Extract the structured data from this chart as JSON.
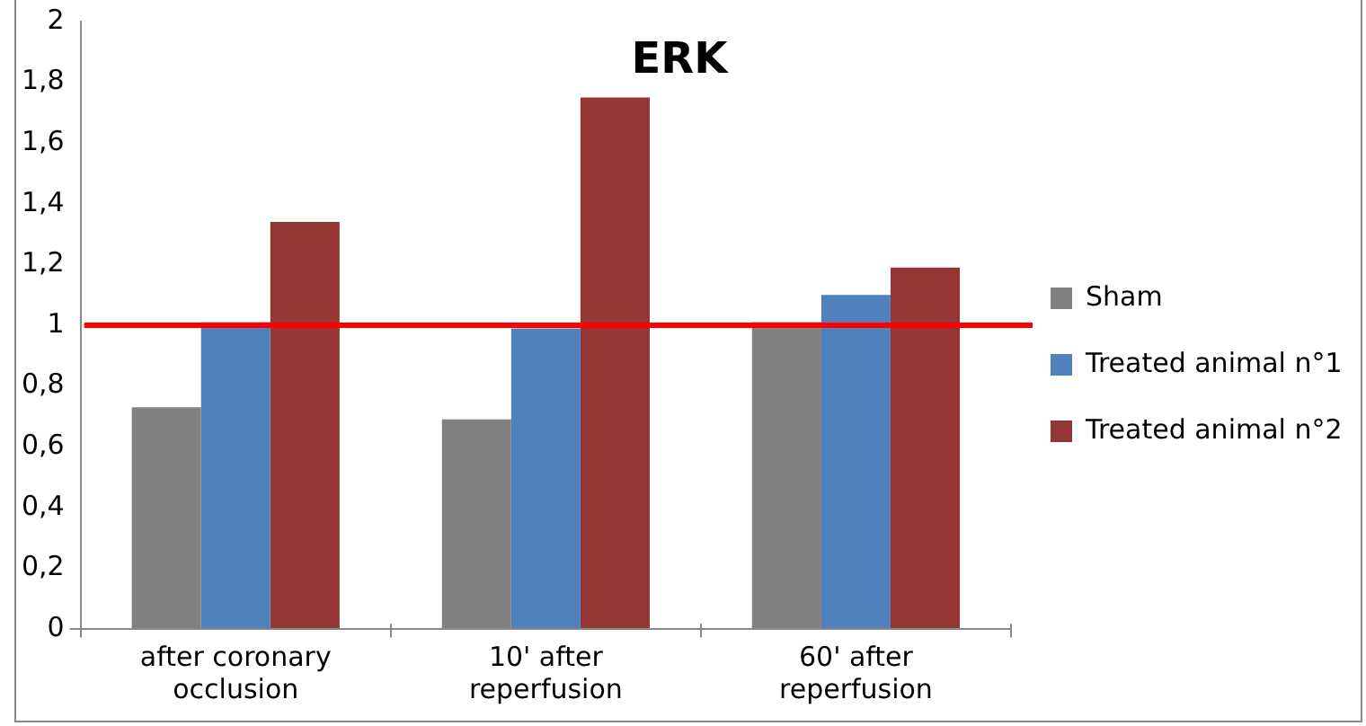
{
  "chart_data": {
    "type": "bar",
    "title": "ERK",
    "categories": [
      "after coronary occlusion",
      "10' after reperfusion",
      "60' after reperfusion"
    ],
    "series": [
      {
        "name": "Sham",
        "color": "#808080",
        "values": [
          0.73,
          0.69,
          1.01
        ]
      },
      {
        "name": "Treated animal n°1",
        "color": "#4f81bd",
        "values": [
          1.01,
          0.99,
          1.1
        ]
      },
      {
        "name": "Treated animal n°2",
        "color": "#943634",
        "values": [
          1.34,
          1.75,
          1.19
        ]
      }
    ],
    "ylim": [
      0,
      2
    ],
    "yticks": [
      0,
      {
        "value": 0.2,
        "label": "0,2"
      },
      {
        "value": 0.4,
        "label": "0,4"
      },
      {
        "value": 0.6,
        "label": "0,6"
      },
      {
        "value": 0.8,
        "label": "0,8"
      },
      1,
      {
        "value": 1.2,
        "label": "1,2"
      },
      {
        "value": 1.4,
        "label": "1,4"
      },
      {
        "value": 1.6,
        "label": "1,6"
      },
      {
        "value": 1.8,
        "label": "1,8"
      },
      2
    ],
    "ref_lines": [
      {
        "axis": "y",
        "value": 1,
        "color": "#ff0000"
      }
    ],
    "legend": "right"
  }
}
